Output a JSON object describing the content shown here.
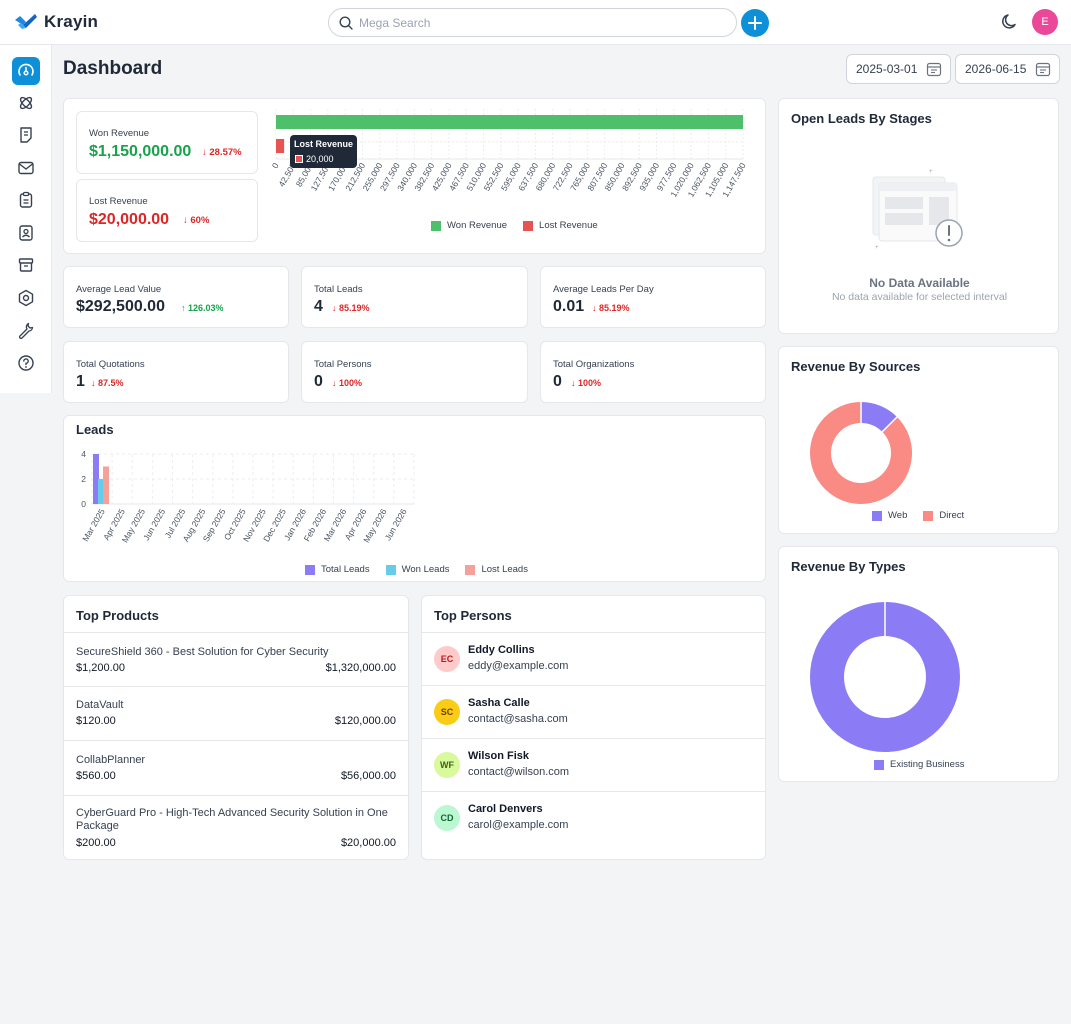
{
  "app": {
    "name": "Krayin"
  },
  "search": {
    "placeholder": "Mega Search"
  },
  "user": {
    "initial": "E"
  },
  "page": {
    "title": "Dashboard",
    "start_date": "2025-03-01",
    "end_date": "2026-06-15"
  },
  "revenue": {
    "won": {
      "label": "Won Revenue",
      "value": "$1,150,000.00",
      "change": "28.57%"
    },
    "lost": {
      "label": "Lost Revenue",
      "value": "$20,000.00",
      "change": "60%"
    },
    "tooltip": {
      "title": "Lost Revenue",
      "value": "20,000"
    },
    "legend": {
      "won": "Won Revenue",
      "lost": "Lost Revenue"
    },
    "colors": {
      "won": "#4ec06c",
      "lost": "#e55353"
    }
  },
  "stats": {
    "avg_lead_value": {
      "label": "Average Lead Value",
      "value": "$292,500.00",
      "change": "126.03%"
    },
    "total_leads": {
      "label": "Total Leads",
      "value": "4",
      "change": "85.19%"
    },
    "avg_leads_per_day": {
      "label": "Average Leads Per Day",
      "value": "0.01",
      "change": "85.19%"
    },
    "total_quotations": {
      "label": "Total Quotations",
      "value": "1",
      "change": "87.5%"
    },
    "total_persons": {
      "label": "Total Persons",
      "value": "0",
      "change": "100%"
    },
    "total_organizations": {
      "label": "Total Organizations",
      "value": "0",
      "change": "100%"
    }
  },
  "leads": {
    "title": "Leads",
    "legend": {
      "total": "Total Leads",
      "won": "Won Leads",
      "lost": "Lost Leads"
    },
    "colors": {
      "total": "#8b7cf6",
      "won": "#67cce9",
      "lost": "#f6a09a"
    }
  },
  "top_products": {
    "title": "Top Products",
    "items": [
      {
        "name": "SecureShield 360 - Best Solution for Cyber Security",
        "price": "$1,200.00",
        "total": "$1,320,000.00"
      },
      {
        "name": "DataVault",
        "price": "$120.00",
        "total": "$120,000.00"
      },
      {
        "name": "CollabPlanner",
        "price": "$560.00",
        "total": "$56,000.00"
      },
      {
        "name": "CyberGuard Pro - High-Tech Advanced Security Solution in One Package",
        "price": "$200.00",
        "total": "$20,000.00"
      }
    ]
  },
  "top_persons": {
    "title": "Top Persons",
    "items": [
      {
        "initials": "EC",
        "name": "Eddy Collins",
        "email": "eddy@example.com",
        "color": "#fecaca",
        "text_color": "#b91c1c"
      },
      {
        "initials": "SC",
        "name": "Sasha Calle",
        "email": "contact@sasha.com",
        "color": "#facc15",
        "text_color": "#713f12"
      },
      {
        "initials": "WF",
        "name": "Wilson Fisk",
        "email": "contact@wilson.com",
        "color": "#d9f99d",
        "text_color": "#3f6212"
      },
      {
        "initials": "CD",
        "name": "Carol Denvers",
        "email": "carol@example.com",
        "color": "#bbf7d0",
        "text_color": "#166534"
      }
    ]
  },
  "open_leads": {
    "title": "Open Leads By Stages",
    "empty_title": "No Data Available",
    "empty_text": "No data available for selected interval"
  },
  "revenue_sources": {
    "title": "Revenue By Sources",
    "legend": [
      "Web",
      "Direct"
    ],
    "colors": [
      "#8b7cf6",
      "#f98b84"
    ]
  },
  "revenue_types": {
    "title": "Revenue By Types",
    "legend": [
      "Existing Business"
    ],
    "colors": [
      "#8b7cf6"
    ]
  },
  "chart_data": [
    {
      "type": "bar",
      "orientation": "horizontal",
      "categories": [
        "Won Revenue",
        "Lost Revenue"
      ],
      "values": [
        1150000,
        20000
      ],
      "xlim": [
        0,
        1147500
      ],
      "xticks": [
        "0",
        "42,500",
        "85,000",
        "127,500",
        "170,000",
        "212,500",
        "255,000",
        "297,500",
        "340,000",
        "382,500",
        "425,000",
        "467,500",
        "510,000",
        "552,500",
        "595,000",
        "637,500",
        "680,000",
        "722,500",
        "765,000",
        "807,500",
        "850,000",
        "892,500",
        "935,000",
        "977,500",
        "1,020,000",
        "1,062,500",
        "1,105,000",
        "1,147,500"
      ],
      "legend": [
        "Won Revenue",
        "Lost Revenue"
      ]
    },
    {
      "type": "bar",
      "categories": [
        "Mar 2025",
        "Apr 2025",
        "May 2025",
        "Jun 2025",
        "Jul 2025",
        "Aug 2025",
        "Sep 2025",
        "Oct 2025",
        "Nov 2025",
        "Dec 2025",
        "Jan 2026",
        "Feb 2026",
        "Mar 2026",
        "Apr 2026",
        "May 2026",
        "Jun 2026"
      ],
      "series": [
        {
          "name": "Total Leads",
          "values": [
            4,
            0,
            0,
            0,
            0,
            0,
            0,
            0,
            0,
            0,
            0,
            0,
            0,
            0,
            0,
            0
          ]
        },
        {
          "name": "Won Leads",
          "values": [
            2,
            0,
            0,
            0,
            0,
            0,
            0,
            0,
            0,
            0,
            0,
            0,
            0,
            0,
            0,
            0
          ]
        },
        {
          "name": "Lost Leads",
          "values": [
            3,
            0,
            0,
            0,
            0,
            0,
            0,
            0,
            0,
            0,
            0,
            0,
            0,
            0,
            0,
            0
          ]
        }
      ],
      "ylim": [
        0,
        4
      ],
      "yticks": [
        "0",
        "2",
        "4"
      ]
    },
    {
      "type": "pie",
      "labels": [
        "Web",
        "Direct"
      ],
      "values": [
        12.5,
        87.5
      ]
    },
    {
      "type": "pie",
      "labels": [
        "Existing Business"
      ],
      "values": [
        100
      ]
    }
  ]
}
